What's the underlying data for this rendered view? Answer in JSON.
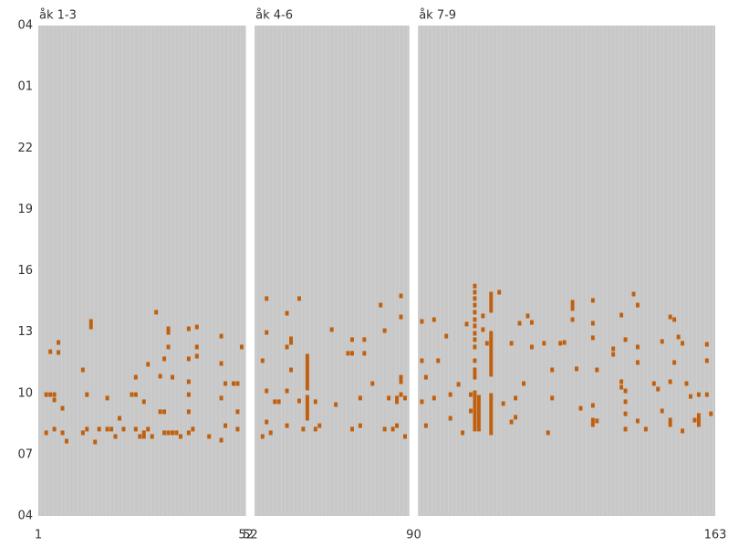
{
  "chart_data": {
    "type": "heatmap",
    "color": "#c0600f",
    "background": "#c8c8c8",
    "ylim": [
      4,
      28
    ],
    "yticks": [
      {
        "value": 4,
        "label": "04"
      },
      {
        "value": 7,
        "label": "07"
      },
      10,
      13,
      16,
      19,
      22,
      {
        "value": 25,
        "label": "01"
      },
      {
        "value": 28,
        "label": "04"
      }
    ],
    "panels": [
      {
        "title": "åk 1-3",
        "xlim": [
          1,
          52
        ],
        "xticks": [
          1,
          52
        ],
        "x": [
          3,
          3,
          4,
          4,
          5,
          5,
          6,
          6,
          7,
          7,
          8,
          5,
          12,
          12,
          13,
          13,
          15,
          16,
          18,
          19,
          20,
          18,
          21,
          22,
          24,
          25,
          25,
          25,
          26,
          27,
          27,
          27,
          28,
          28,
          29,
          30,
          31,
          31,
          32,
          32,
          32,
          33,
          33,
          34,
          34,
          35,
          36,
          38,
          38,
          38,
          38,
          38,
          38,
          40,
          40,
          40,
          39,
          43,
          46,
          46,
          46,
          46,
          47,
          47,
          49,
          50,
          50,
          50,
          51
        ],
        "y": [
          8.07,
          9.94,
          12.04,
          9.94,
          9.68,
          9.94,
          12.49,
          12.0,
          9.27,
          8.07,
          7.66,
          8.25,
          11.15,
          8.07,
          9.94,
          8.25,
          7.62,
          8.25,
          8.25,
          8.25,
          7.89,
          9.77,
          8.78,
          8.25,
          9.94,
          9.94,
          10.79,
          8.25,
          7.89,
          7.89,
          9.59,
          8.07,
          11.42,
          8.25,
          7.89,
          13.97,
          9.1,
          10.84,
          9.1,
          8.07,
          11.69,
          12.27,
          8.07,
          8.07,
          10.79,
          8.07,
          7.89,
          13.16,
          8.07,
          11.69,
          10.57,
          9.94,
          9.1,
          13.25,
          12.27,
          11.82,
          8.25,
          7.89,
          12.8,
          11.46,
          9.77,
          7.71,
          10.48,
          8.42,
          10.48,
          10.48,
          9.1,
          8.25,
          12.27
        ],
        "runs": {
          "x": [
            14,
            33
          ],
          "y": [
            13.25,
            12.98
          ],
          "y2": [
            13.52,
            13.16
          ]
        }
      },
      {
        "title": "åk 4-6",
        "xlim": [
          52,
          90
        ],
        "xticks": [
          52
        ],
        "x": [
          54,
          54,
          55,
          55,
          55,
          55,
          56,
          57,
          58,
          60,
          60,
          60,
          60,
          61,
          61,
          61,
          63,
          63,
          64,
          67,
          67,
          68,
          71,
          72,
          75,
          76,
          76,
          76,
          78,
          78,
          79,
          79,
          81,
          83,
          84,
          84,
          85,
          86,
          87,
          87,
          87,
          88,
          88,
          88,
          88,
          88,
          89,
          89
        ],
        "y": [
          11.6,
          7.89,
          14.64,
          12.98,
          10.12,
          8.6,
          8.07,
          9.59,
          9.59,
          8.42,
          13.92,
          12.27,
          10.12,
          12.49,
          11.15,
          12.67,
          14.64,
          9.63,
          8.25,
          8.25,
          9.59,
          8.42,
          13.12,
          9.45,
          11.96,
          11.96,
          8.25,
          12.63,
          9.77,
          8.42,
          12.63,
          11.96,
          10.48,
          14.32,
          13.07,
          8.25,
          9.77,
          8.25,
          8.42,
          9.59,
          9.77,
          14.77,
          13.74,
          10.79,
          10.57,
          9.94,
          9.77,
          7.89
        ],
        "runs": {
          "x": [
            65,
            65
          ],
          "y": [
            10.26,
            8.78
          ],
          "y2": [
            11.82,
            9.81
          ]
        }
      },
      {
        "title": "åk 7-9",
        "xlim": [
          90,
          163
        ],
        "xticks": [
          90,
          163
        ],
        "x": [
          91,
          91,
          91,
          92,
          92,
          94,
          94,
          95,
          97,
          98,
          98,
          100,
          101,
          102,
          103,
          103,
          104,
          104,
          104,
          104,
          104,
          104,
          104,
          104,
          104,
          104,
          104,
          104,
          104,
          104,
          106,
          106,
          107,
          110,
          111,
          113,
          113,
          114,
          115,
          114,
          116,
          117,
          118,
          118,
          121,
          122,
          123,
          123,
          125,
          126,
          128,
          129,
          130,
          133,
          133,
          133,
          133,
          134,
          134,
          138,
          138,
          140,
          140,
          140,
          141,
          141,
          141,
          141,
          141,
          143,
          144,
          144,
          144,
          144,
          146,
          148,
          149,
          150,
          150,
          152,
          152,
          152,
          152,
          153,
          153,
          154,
          155,
          155,
          156,
          157,
          158,
          159,
          161,
          161,
          161,
          162
        ],
        "y": [
          9.59,
          13.52,
          11.6,
          10.79,
          8.42,
          13.61,
          9.77,
          11.6,
          12.8,
          9.94,
          8.78,
          10.44,
          8.07,
          13.39,
          9.94,
          9.14,
          15.25,
          14.95,
          14.64,
          14.32,
          13.97,
          13.61,
          13.3,
          12.94,
          12.63,
          12.27,
          11.6,
          11.15,
          10.93,
          10.79,
          13.79,
          13.12,
          12.45,
          14.95,
          9.5,
          8.6,
          12.45,
          9.77,
          13.43,
          8.83,
          10.48,
          13.79,
          13.47,
          12.27,
          12.45,
          8.07,
          11.15,
          9.77,
          12.45,
          12.49,
          13.61,
          11.2,
          9.27,
          14.55,
          13.43,
          12.72,
          9.41,
          11.15,
          8.65,
          12.18,
          11.91,
          10.57,
          10.3,
          13.83,
          12.63,
          10.12,
          9.59,
          8.25,
          9.0,
          14.86,
          14.32,
          12.27,
          11.51,
          8.65,
          8.25,
          10.48,
          10.21,
          9.14,
          12.54,
          8.69,
          8.47,
          13.74,
          10.57,
          11.51,
          13.61,
          12.76,
          8.16,
          12.45,
          10.48,
          9.85,
          8.69,
          9.94,
          12.4,
          9.94,
          11.6,
          9.0
        ],
        "runs": {
          "x": [
            104,
            105,
            108,
            108,
            108,
            128,
            133,
            159
          ],
          "y": [
            8.25,
            8.25,
            14.06,
            10.93,
            8.07,
            14.15,
            8.47,
            8.47
          ],
          "y2": [
            10.03,
            9.81,
            14.86,
            12.94,
            9.9,
            14.46,
            8.69,
            8.92
          ]
        }
      }
    ]
  }
}
